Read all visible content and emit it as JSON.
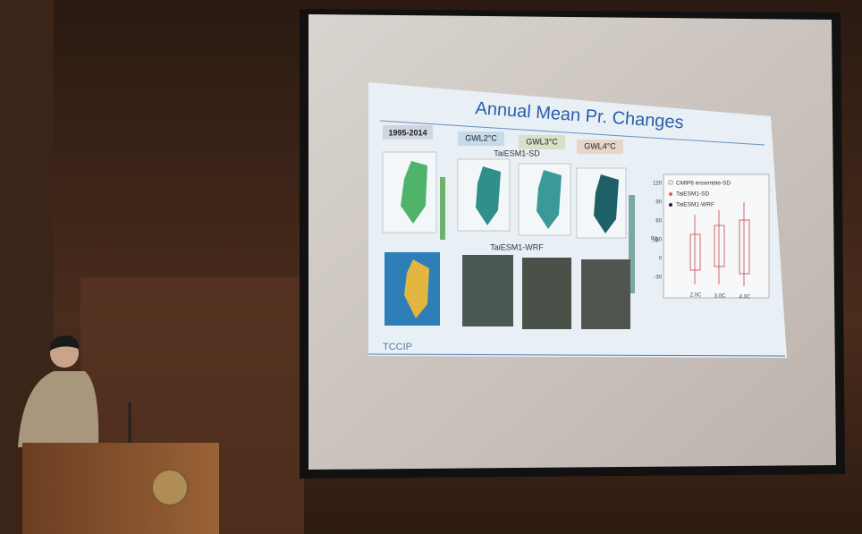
{
  "slide": {
    "title": "Annual Mean Pr. Changes",
    "period": "1995-2014",
    "scenarios": [
      "GWL2°C",
      "GWL3°C",
      "GWL4°C"
    ],
    "row_labels": [
      "TaiESM1-SD",
      "TaiESM1-WRF"
    ],
    "legend": [
      "CMIP6 ensemble-SD",
      "TaiESM1-SD",
      "TaiESM1-WRF"
    ],
    "boxplot": {
      "unit": "%",
      "yticks": [
        "120",
        "90",
        "60",
        "30",
        "0",
        "-30"
      ],
      "categories": [
        "2.0C",
        "3.0C",
        "4.0C"
      ]
    },
    "logo": "TCCIP"
  }
}
